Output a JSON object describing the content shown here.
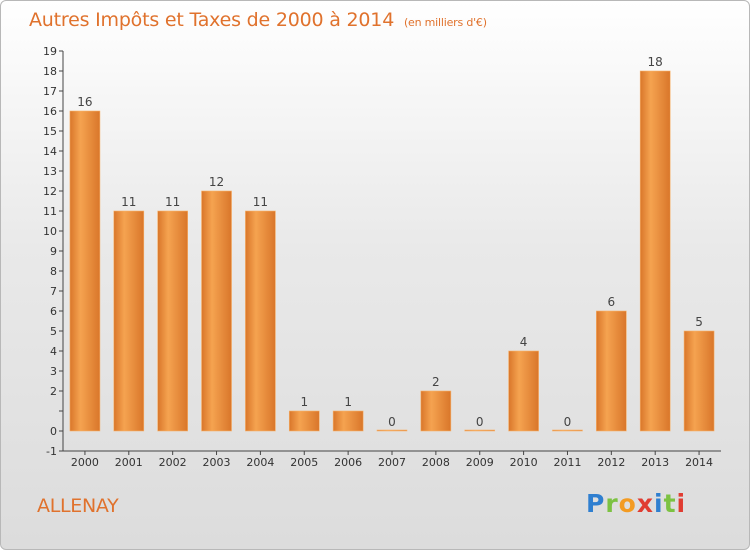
{
  "title": "Autres Impôts et Taxes de 2000 à 2014",
  "subtitle": "(en milliers d'€)",
  "commune": "ALLENAY",
  "logo": {
    "letters": [
      "P",
      "r",
      "o",
      "x",
      "i",
      "t",
      "i"
    ],
    "colors": [
      "#2f7fd0",
      "#7cc242",
      "#f39b22",
      "#e03c31",
      "#2f7fd0",
      "#7cc242",
      "#e03c31"
    ]
  },
  "colors": {
    "bar_light": "#f5a350",
    "bar_dark": "#d9762a",
    "text_orange": "#e0722d"
  },
  "chart_data": {
    "type": "bar",
    "title": "Autres Impôts et Taxes de 2000 à 2014",
    "subtitle": "(en milliers d'€)",
    "xlabel": "",
    "ylabel": "",
    "categories": [
      "2000",
      "2001",
      "2002",
      "2003",
      "2004",
      "2005",
      "2006",
      "2007",
      "2008",
      "2009",
      "2010",
      "2011",
      "2012",
      "2013",
      "2014"
    ],
    "values": [
      16,
      11,
      11,
      12,
      11,
      1,
      1,
      0,
      2,
      0,
      4,
      0,
      6,
      18,
      5
    ],
    "data_labels": [
      "16",
      "11",
      "11",
      "12",
      "11",
      "1",
      "1",
      "0",
      "2",
      "0",
      "4",
      "0",
      "6",
      "18",
      "5"
    ],
    "ylim": [
      -1,
      19
    ],
    "yticks": [
      "-1",
      "0",
      "",
      "2",
      "3",
      "4",
      "5",
      "6",
      "7",
      "8",
      "9",
      "10",
      "11",
      "12",
      "13",
      "14",
      "15",
      "16",
      "17",
      "18",
      "19"
    ],
    "ytick_values": [
      -1,
      0,
      1,
      2,
      3,
      4,
      5,
      6,
      7,
      8,
      9,
      10,
      11,
      12,
      13,
      14,
      15,
      16,
      17,
      18,
      19
    ],
    "grid": false,
    "legend": "none"
  }
}
